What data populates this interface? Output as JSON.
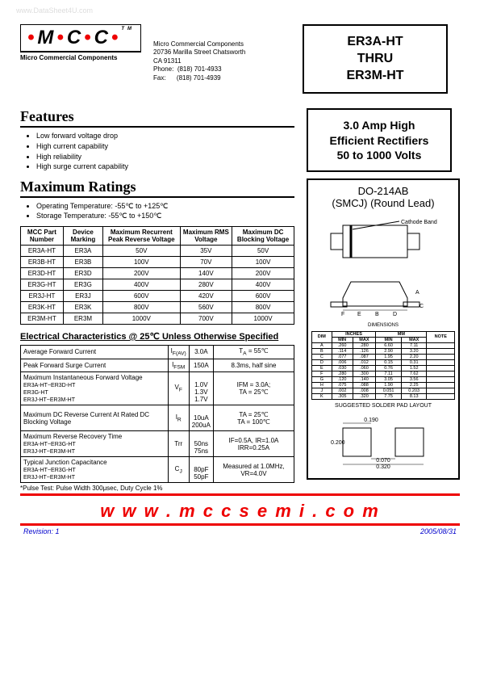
{
  "watermark": "www.DataSheet4U.com",
  "logo": {
    "m": "M",
    "c1": "C",
    "c2": "C",
    "tm": "TM",
    "sub": "Micro Commercial Components"
  },
  "address": {
    "name": "Micro Commercial Components",
    "street": "20736 Marilla Street Chatsworth",
    "city": "CA 91311",
    "phone_lbl": "Phone:",
    "phone": "(818) 701-4933",
    "fax_lbl": "Fax:",
    "fax": "(818) 701-4939"
  },
  "title": {
    "l1": "ER3A-HT",
    "l2": "THRU",
    "l3": "ER3M-HT"
  },
  "subtitle": {
    "l1": "3.0 Amp High",
    "l2": "Efficient Rectifiers",
    "l3": "50 to 1000 Volts"
  },
  "features": {
    "h": "Features",
    "items": [
      "Low forward voltage drop",
      "High current capability",
      "High reliability",
      "High surge current capability"
    ]
  },
  "maxratings": {
    "h": "Maximum Ratings",
    "items": [
      "Operating Temperature: -55℃ to +125℃",
      "Storage Temperature: -55℃ to +150℃"
    ]
  },
  "ratings_table": {
    "headers": [
      "MCC Part Number",
      "Device Marking",
      "Maximum Recurrent Peak Reverse Voltage",
      "Maximum RMS Voltage",
      "Maximum DC Blocking Voltage"
    ],
    "rows": [
      [
        "ER3A-HT",
        "ER3A",
        "50V",
        "35V",
        "50V"
      ],
      [
        "ER3B-HT",
        "ER3B",
        "100V",
        "70V",
        "100V"
      ],
      [
        "ER3D-HT",
        "ER3D",
        "200V",
        "140V",
        "200V"
      ],
      [
        "ER3G-HT",
        "ER3G",
        "400V",
        "280V",
        "400V"
      ],
      [
        "ER3J-HT",
        "ER3J",
        "600V",
        "420V",
        "600V"
      ],
      [
        "ER3K-HT",
        "ER3K",
        "800V",
        "560V",
        "800V"
      ],
      [
        "ER3M-HT",
        "ER3M",
        "1000V",
        "700V",
        "1000V"
      ]
    ]
  },
  "ec_h": "Electrical Characteristics @ 25℃ Unless Otherwise Specified",
  "ec_table": {
    "rows": [
      {
        "p": "Average Forward Current",
        "s": "I",
        "sub": "F(AV)",
        "v": "3.0A",
        "c": "T",
        "csub": "A",
        "ct": " = 55℃"
      },
      {
        "p": "Peak Forward Surge Current",
        "s": "I",
        "sub": "FSM",
        "v": "150A",
        "ctext": "8.3ms, half sine"
      },
      {
        "p": "Maximum Instantaneous Forward Voltage",
        "sublines": [
          "ER3A-HT~ER3D-HT",
          "ER3G-HT",
          "ER3J-HT~ER3M-HT"
        ],
        "s": "V",
        "sub": "F",
        "vlines": [
          "1.0V",
          "1.3V",
          "1.7V"
        ],
        "ctext": "IFM = 3.0A;\nTA = 25℃"
      },
      {
        "p": "Maximum DC Reverse Current At Rated DC Blocking Voltage",
        "s": "I",
        "sub": "R",
        "vlines": [
          "10uA",
          "200uA"
        ],
        "ctext": "TA = 25℃\nTA = 100℃"
      },
      {
        "p": "Maximum Reverse Recovery Time",
        "sublines": [
          "ER3A-HT~ER3G-HT",
          "ER3J-HT~ER3M-HT"
        ],
        "s": "Trr",
        "sub": "",
        "vlines": [
          "50ns",
          "75ns"
        ],
        "ctext": "IF=0.5A, IR=1.0A\nIRR=0.25A"
      },
      {
        "p": "Typical Junction Capacitance",
        "sublines": [
          "ER3A-HT~ER3G-HT",
          "ER3J-HT~ER3M-HT"
        ],
        "s": "C",
        "sub": "J",
        "vlines": [
          "80pF",
          "50pF"
        ],
        "ctext": "Measured at 1.0MHz, VR=4.0V"
      }
    ]
  },
  "note": "*Pulse Test: Pulse Width 300μsec, Duty Cycle 1%",
  "package": {
    "title": "DO-214AB\n(SMCJ) (Round Lead)",
    "cathode": "Cathode Band",
    "dim_h": "DIMENSIONS",
    "dim_cols": [
      "DIM",
      "INCHES MIN",
      "INCHES MAX",
      "MM MIN",
      "MM MAX",
      "NOTE"
    ],
    "dim_rows": [
      [
        "A",
        ".260",
        ".280",
        "6.60",
        "7.11",
        ""
      ],
      [
        "B",
        ".114",
        ".126",
        "2.90",
        "3.20",
        ""
      ],
      [
        "C",
        ".077",
        ".087",
        "1.95",
        "2.20",
        ""
      ],
      [
        "D",
        ".006",
        ".012",
        "0.15",
        "0.31",
        ""
      ],
      [
        "E",
        ".030",
        ".060",
        "0.76",
        "1.52",
        ""
      ],
      [
        "F",
        ".280",
        ".300",
        "7.11",
        "7.62",
        ""
      ],
      [
        "G",
        ".120",
        ".140",
        "3.05",
        "3.56",
        ""
      ],
      [
        "H",
        ".075",
        ".088",
        "1.90",
        "2.25",
        ""
      ],
      [
        "J",
        ".002",
        ".008",
        "0.051",
        "0.203",
        ""
      ],
      [
        "K",
        ".305",
        ".320",
        "7.75",
        "8.13",
        ""
      ]
    ],
    "solder_h": "SUGGESTED SOLDER PAD LAYOUT",
    "solder_dims": {
      "w": "0.190",
      "h": "0.200",
      "gap": "0.070",
      "total": "0.320"
    }
  },
  "footer_url": "www.mccsemi.com",
  "footer": {
    "rev": "Revision: 1",
    "date": "2005/08/31"
  }
}
